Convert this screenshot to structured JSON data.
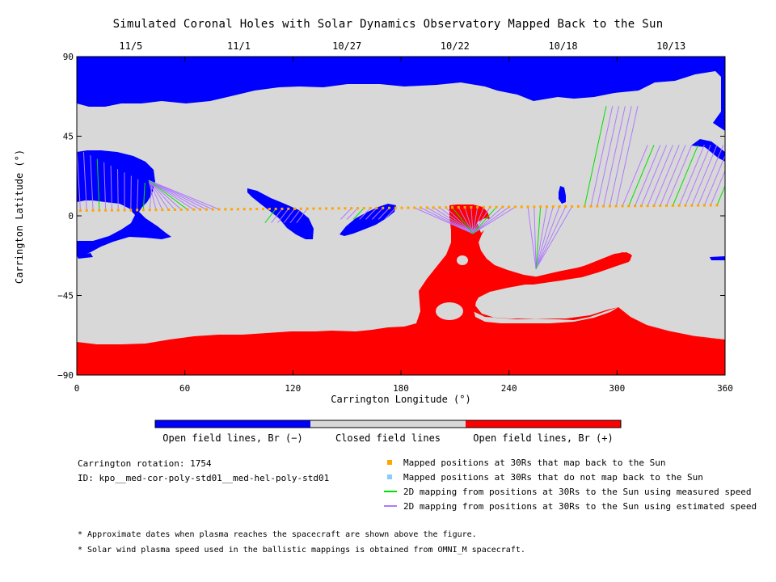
{
  "chart_data": {
    "type": "map",
    "title": "Simulated Coronal Holes with Solar Dynamics Observatory Mapped Back to the Sun",
    "xlabel": "Carrington Longitude (°)",
    "ylabel": "Carrington Latitude (°)",
    "xlim": [
      0,
      360
    ],
    "ylim": [
      -90,
      90
    ],
    "x_ticks": [
      0,
      60,
      120,
      180,
      240,
      300,
      360
    ],
    "y_ticks": [
      90,
      45,
      0,
      -45,
      -90
    ],
    "y_tick_labels": [
      "90",
      "45",
      "0",
      "−45",
      "−90"
    ],
    "top_dates": [
      {
        "label": "11/5",
        "lon": 30
      },
      {
        "label": "11/1",
        "lon": 90
      },
      {
        "label": "10/27",
        "lon": 150
      },
      {
        "label": "10/22",
        "lon": 210
      },
      {
        "label": "10/18",
        "lon": 270
      },
      {
        "label": "10/13",
        "lon": 330
      }
    ],
    "colors": {
      "open_negative": "#0000ff",
      "closed": "#d8d8d8",
      "open_positive": "#ff0000",
      "mapped_back": "#ffa500",
      "not_mapped": "#87cefa",
      "measured_speed": "#00e000",
      "estimated_speed": "#b07aff"
    },
    "mapped_points": {
      "lon_start": 2,
      "lon_end": 358,
      "lon_step": 3.5,
      "lat_start": 3,
      "lat_end": 6
    },
    "colorbar": [
      {
        "label": "Open field lines, Br (−)",
        "color": "#0000ff"
      },
      {
        "label": "Closed field lines",
        "color": "#d8d8d8"
      },
      {
        "label": "Open field lines, Br (+)",
        "color": "#ff0000"
      }
    ]
  },
  "info": {
    "rotation": "Carrington rotation: 1754",
    "id": "ID: kpo__med-cor-poly-std01__med-hel-poly-std01"
  },
  "legend": [
    {
      "label": "Mapped positions at 30Rs that map back to the Sun",
      "kind": "square",
      "color": "#ffa500"
    },
    {
      "label": "Mapped positions at 30Rs that do not map back to the Sun",
      "kind": "square",
      "color": "#87cefa"
    },
    {
      "label": "2D mapping from positions at 30Rs to the Sun using measured speed",
      "kind": "line",
      "color": "#00e000"
    },
    {
      "label": "2D mapping from positions at 30Rs to the Sun using estimated speed",
      "kind": "line",
      "color": "#b07aff"
    }
  ],
  "footnotes": [
    "* Approximate dates when plasma reaches the spacecraft are shown above the figure.",
    "* Solar wind plasma speed used in the ballistic mappings is obtained from OMNI_M spacecraft."
  ]
}
